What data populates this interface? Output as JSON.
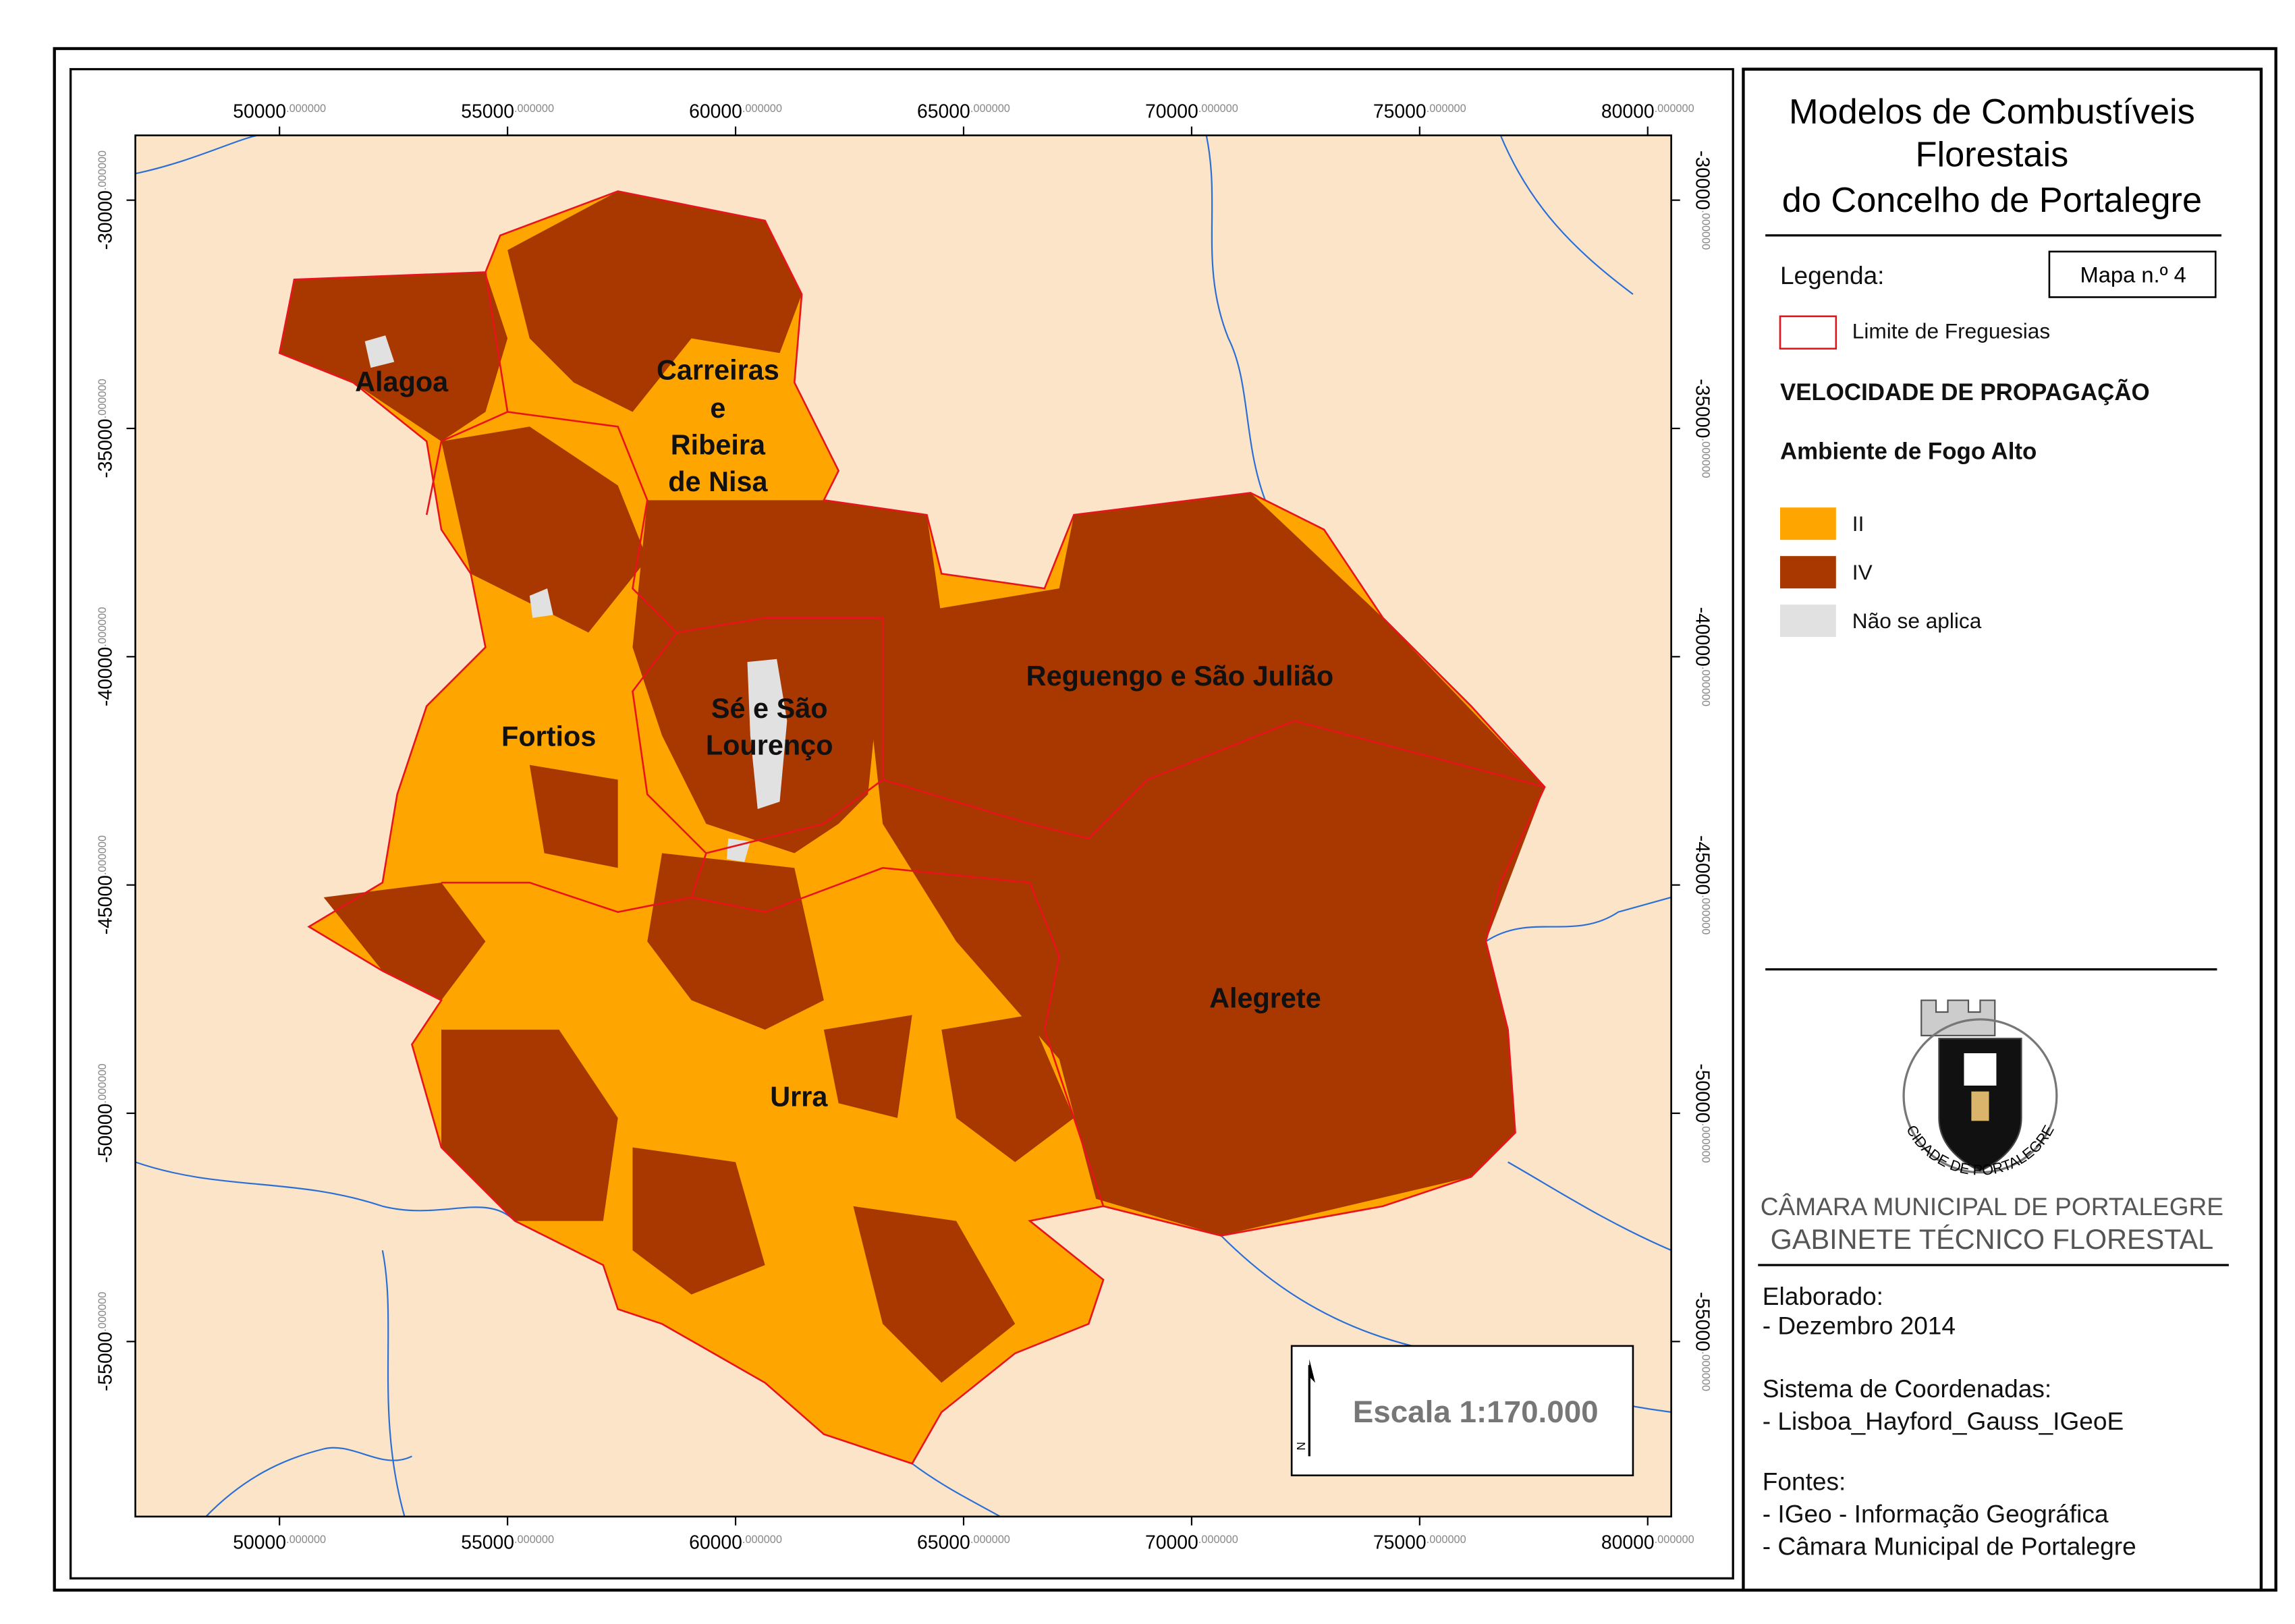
{
  "map": {
    "title": [
      "Modelos de Combustíveis",
      "Florestais",
      "do Concelho de Portalegre"
    ],
    "map_number": "Mapa n.º 4",
    "legend": {
      "heading": "Legenda:",
      "boundary": "Limite de Freguesias",
      "boundary_color": "#e8141c",
      "theme": "VELOCIDADE DE PROPAGAÇÃO",
      "subtheme": "Ambiente de Fogo Alto",
      "classes": [
        {
          "label": "II",
          "color": "#ffa500"
        },
        {
          "label": "IV",
          "color": "#a83800"
        },
        {
          "label": "Não se aplica",
          "color": "#e1e1e1"
        }
      ]
    },
    "places": {
      "alagoa": "Alagoa",
      "carreiras": [
        "Carreiras",
        "e",
        "Ribeira",
        "de Nisa"
      ],
      "fortios": "Fortios",
      "se": [
        "Sé e São",
        "Lourenço"
      ],
      "reguengo": "Reguengo e São Julião",
      "alegrete": "Alegrete",
      "urra": "Urra"
    },
    "xlim": [
      46839,
      80516
    ],
    "ylim": [
      -58834,
      -28581
    ],
    "xticks": [
      {
        "value": 50000,
        "label": "50000",
        "decimals": ".000000"
      },
      {
        "value": 55000,
        "label": "55000",
        "decimals": ".000000"
      },
      {
        "value": 60000,
        "label": "60000",
        "decimals": ".000000"
      },
      {
        "value": 65000,
        "label": "65000",
        "decimals": ".000000"
      },
      {
        "value": 70000,
        "label": "70000",
        "decimals": ".000000"
      },
      {
        "value": 75000,
        "label": "75000",
        "decimals": ".000000"
      },
      {
        "value": 80000,
        "label": "80000",
        "decimals": ".000000"
      }
    ],
    "yticks": [
      {
        "value": -30000,
        "label": "-30000",
        "decimals": ".000000"
      },
      {
        "value": -35000,
        "label": "-35000",
        "decimals": ".000000"
      },
      {
        "value": -40000,
        "label": "-40000",
        "decimals": ".000000"
      },
      {
        "value": -45000,
        "label": "-45000",
        "decimals": ".000000"
      },
      {
        "value": -50000,
        "label": "-50000",
        "decimals": ".000000"
      },
      {
        "value": -55000,
        "label": "-55000",
        "decimals": ".000000"
      }
    ],
    "scale": "Escala 1:170.000",
    "north": "N",
    "emblem": "CIDADE DE PORTALEGRE",
    "organization": [
      "CÂMARA MUNICIPAL DE PORTALEGRE",
      "GABINETE TÉCNICO FLORESTAL"
    ],
    "credits": [
      "Elaborado:",
      "- Dezembro 2014",
      "Sistema de Coordenadas:",
      "- Lisboa_Hayford_Gauss_IGeoE",
      "Fontes:",
      "- IGeo - Informação Geográfica",
      "- Câmara Municipal de Portalegre"
    ]
  }
}
